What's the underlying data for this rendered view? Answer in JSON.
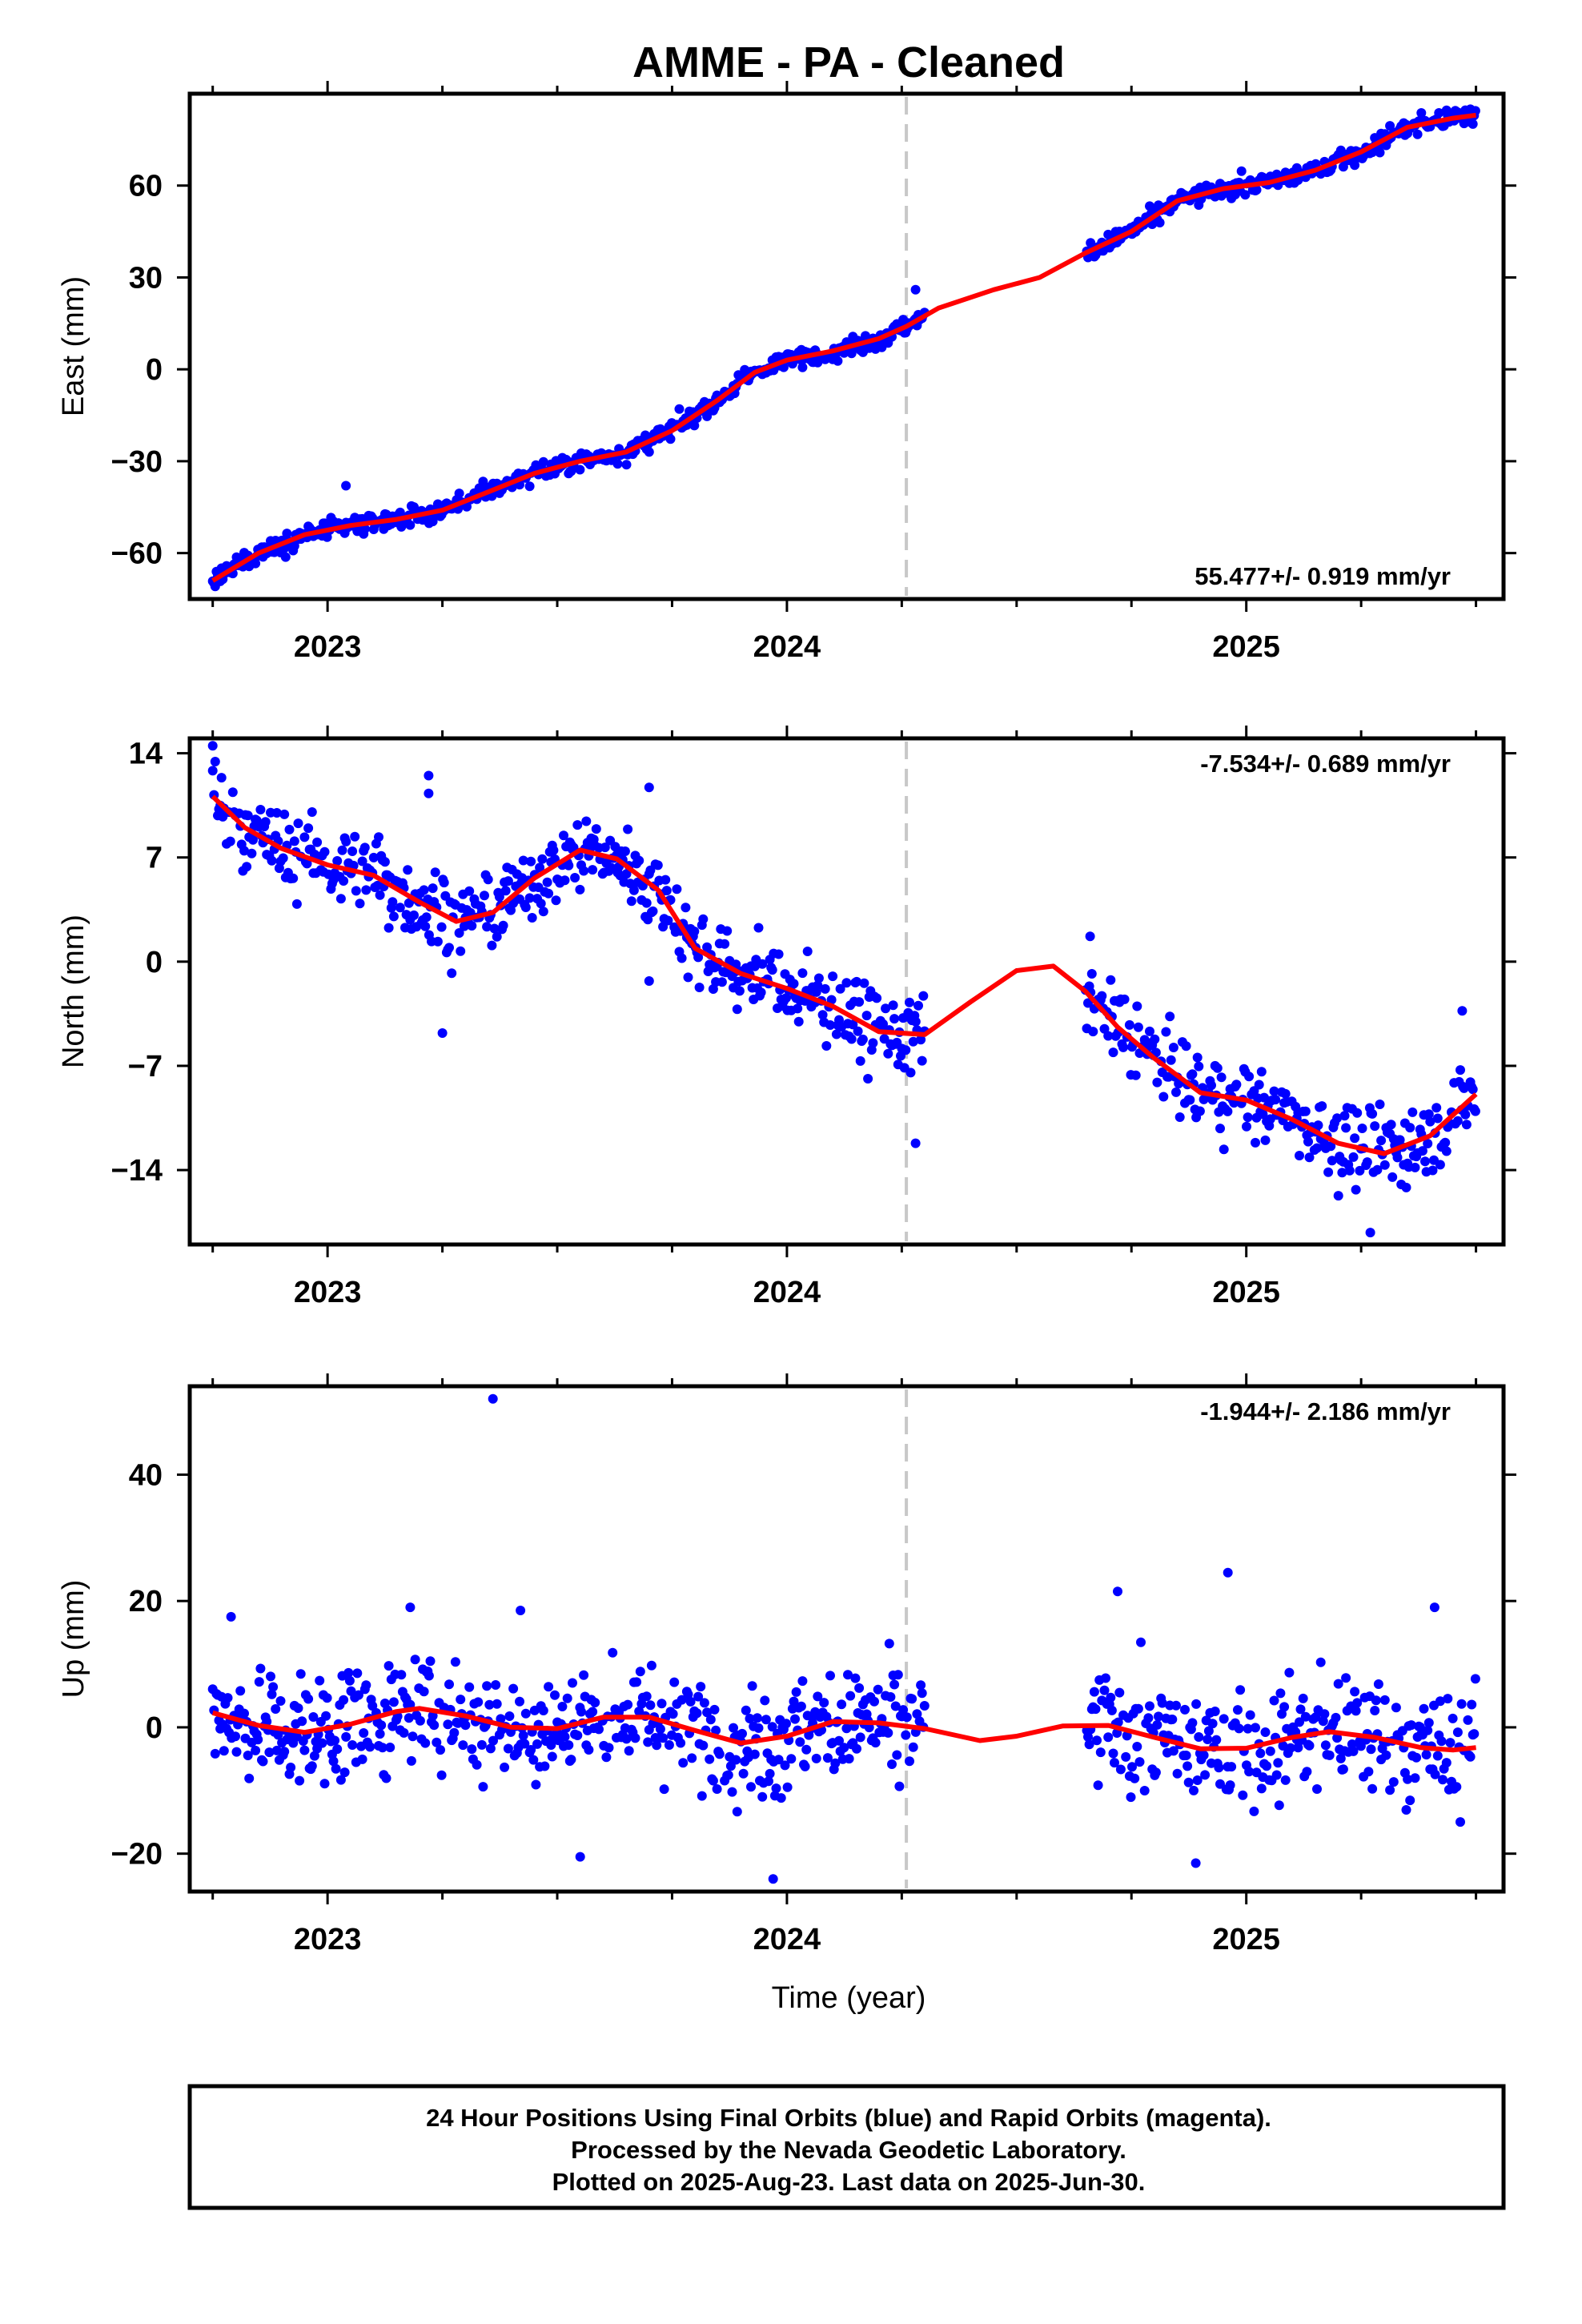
{
  "title": "AMME  - PA - Cleaned",
  "xlabel": "Time (year)",
  "footer": [
    "24 Hour Positions Using Final Orbits (blue) and Rapid Orbits (magenta).",
    "Processed by the Nevada Geodetic Laboratory.",
    "Plotted on 2025-Aug-23. Last data on 2025-Jun-30."
  ],
  "colors": {
    "points": "#0000ff",
    "fit": "#ff0000",
    "marker_line": "#c8c8c8"
  },
  "chart_data": [
    {
      "type": "scatter",
      "ylabel": "East (mm)",
      "rate": "55.477+/- 0.919 mm/yr",
      "rate_position": "bottom-right",
      "xlim": [
        2022.7,
        2025.56
      ],
      "ylim": [
        -75,
        90
      ],
      "x_ticks": [
        2023,
        2024,
        2025
      ],
      "y_ticks": [
        60,
        30,
        0,
        -30,
        -60
      ],
      "y_tick_labels": [
        "60",
        "30",
        "0",
        "−30",
        "−60"
      ],
      "vertical_line_x": 2024.26,
      "gap": [
        2024.3,
        2024.65
      ],
      "data_start": 2022.75,
      "data_end": 2025.5,
      "noise_mm": 2.2,
      "outliers": [
        [
          2024.28,
          26
        ],
        [
          2023.04,
          -38
        ]
      ],
      "fit_line": [
        [
          2022.75,
          -69
        ],
        [
          2022.85,
          -60
        ],
        [
          2022.95,
          -54
        ],
        [
          2023.05,
          -51
        ],
        [
          2023.15,
          -49
        ],
        [
          2023.25,
          -46
        ],
        [
          2023.35,
          -40
        ],
        [
          2023.45,
          -34
        ],
        [
          2023.55,
          -30
        ],
        [
          2023.65,
          -27
        ],
        [
          2023.75,
          -20
        ],
        [
          2023.85,
          -10
        ],
        [
          2023.93,
          -1
        ],
        [
          2024.0,
          3
        ],
        [
          2024.1,
          6
        ],
        [
          2024.2,
          10
        ],
        [
          2024.26,
          14
        ],
        [
          2024.33,
          20
        ],
        [
          2024.45,
          26
        ],
        [
          2024.55,
          30
        ],
        [
          2024.65,
          38
        ],
        [
          2024.75,
          45
        ],
        [
          2024.85,
          55
        ],
        [
          2024.95,
          59
        ],
        [
          2025.05,
          61
        ],
        [
          2025.15,
          65
        ],
        [
          2025.25,
          71
        ],
        [
          2025.35,
          79
        ],
        [
          2025.45,
          82
        ],
        [
          2025.5,
          83
        ]
      ]
    },
    {
      "type": "scatter",
      "ylabel": "North (mm)",
      "rate": "-7.534+/- 0.689 mm/yr",
      "rate_position": "top-right",
      "xlim": [
        2022.7,
        2025.56
      ],
      "ylim": [
        -19,
        15
      ],
      "x_ticks": [
        2023,
        2024,
        2025
      ],
      "y_ticks": [
        14,
        7,
        0,
        -7,
        -14
      ],
      "y_tick_labels": [
        "14",
        "7",
        "0",
        "−7",
        "−14"
      ],
      "vertical_line_x": 2024.26,
      "gap": [
        2024.3,
        2024.65
      ],
      "data_start": 2022.75,
      "data_end": 2025.5,
      "noise_mm": 1.9,
      "outliers": [
        [
          2022.75,
          14.5
        ],
        [
          2023.22,
          12.5
        ],
        [
          2023.22,
          11.3
        ],
        [
          2023.7,
          11.7
        ],
        [
          2023.7,
          -1.3
        ],
        [
          2023.25,
          -4.8
        ],
        [
          2024.28,
          -12.2
        ],
        [
          2025.27,
          -18.2
        ],
        [
          2024.66,
          1.7
        ],
        [
          2025.47,
          -3.3
        ]
      ],
      "fit_line": [
        [
          2022.75,
          11.1
        ],
        [
          2022.82,
          9.0
        ],
        [
          2022.9,
          7.6
        ],
        [
          2023.0,
          6.5
        ],
        [
          2023.1,
          5.8
        ],
        [
          2023.2,
          4.0
        ],
        [
          2023.28,
          2.7
        ],
        [
          2023.36,
          3.3
        ],
        [
          2023.45,
          5.6
        ],
        [
          2023.55,
          7.5
        ],
        [
          2023.63,
          6.9
        ],
        [
          2023.72,
          4.8
        ],
        [
          2023.8,
          0.9
        ],
        [
          2023.9,
          -0.8
        ],
        [
          2024.0,
          -1.8
        ],
        [
          2024.1,
          -3.0
        ],
        [
          2024.2,
          -4.7
        ],
        [
          2024.3,
          -4.9
        ],
        [
          2024.4,
          -2.7
        ],
        [
          2024.5,
          -0.6
        ],
        [
          2024.58,
          -0.3
        ],
        [
          2024.65,
          -2.0
        ],
        [
          2024.72,
          -4.4
        ],
        [
          2024.8,
          -6.5
        ],
        [
          2024.9,
          -8.8
        ],
        [
          2025.0,
          -9.3
        ],
        [
          2025.1,
          -10.6
        ],
        [
          2025.2,
          -12.2
        ],
        [
          2025.3,
          -12.9
        ],
        [
          2025.4,
          -11.7
        ],
        [
          2025.5,
          -8.9
        ]
      ]
    },
    {
      "type": "scatter",
      "ylabel": "Up (mm)",
      "rate": "-1.944+/- 2.186 mm/yr",
      "rate_position": "top-right",
      "xlim": [
        2022.7,
        2025.56
      ],
      "ylim": [
        -26,
        54
      ],
      "x_ticks": [
        2023,
        2024,
        2025
      ],
      "y_ticks": [
        40,
        20,
        0,
        -20
      ],
      "y_tick_labels": [
        "40",
        "20",
        "0",
        "−20"
      ],
      "vertical_line_x": 2024.26,
      "gap": [
        2024.3,
        2024.65
      ],
      "data_start": 2022.75,
      "data_end": 2025.5,
      "noise_mm": 6.5,
      "outliers": [
        [
          2023.36,
          52
        ],
        [
          2024.96,
          24.5
        ],
        [
          2024.72,
          21.5
        ],
        [
          2023.18,
          19
        ],
        [
          2023.97,
          -24
        ],
        [
          2023.42,
          18.5
        ],
        [
          2025.41,
          19
        ],
        [
          2024.89,
          -21.5
        ],
        [
          2022.79,
          17.5
        ],
        [
          2023.55,
          -20.5
        ]
      ],
      "fit_line": [
        [
          2022.75,
          2.3
        ],
        [
          2022.85,
          0.3
        ],
        [
          2022.95,
          -0.8
        ],
        [
          2023.05,
          0.5
        ],
        [
          2023.15,
          2.5
        ],
        [
          2023.2,
          3.0
        ],
        [
          2023.3,
          1.8
        ],
        [
          2023.4,
          0.0
        ],
        [
          2023.5,
          -0.2
        ],
        [
          2023.6,
          1.6
        ],
        [
          2023.7,
          1.6
        ],
        [
          2023.8,
          -0.5
        ],
        [
          2023.9,
          -2.5
        ],
        [
          2024.0,
          -1.4
        ],
        [
          2024.1,
          0.9
        ],
        [
          2024.2,
          0.7
        ],
        [
          2024.3,
          -0.2
        ],
        [
          2024.42,
          -2.1
        ],
        [
          2024.5,
          -1.4
        ],
        [
          2024.6,
          0.2
        ],
        [
          2024.7,
          0.3
        ],
        [
          2024.8,
          -1.6
        ],
        [
          2024.9,
          -3.4
        ],
        [
          2025.0,
          -3.3
        ],
        [
          2025.1,
          -1.6
        ],
        [
          2025.18,
          -0.7
        ],
        [
          2025.28,
          -1.6
        ],
        [
          2025.38,
          -3.2
        ],
        [
          2025.45,
          -3.6
        ],
        [
          2025.5,
          -3.2
        ]
      ]
    }
  ]
}
